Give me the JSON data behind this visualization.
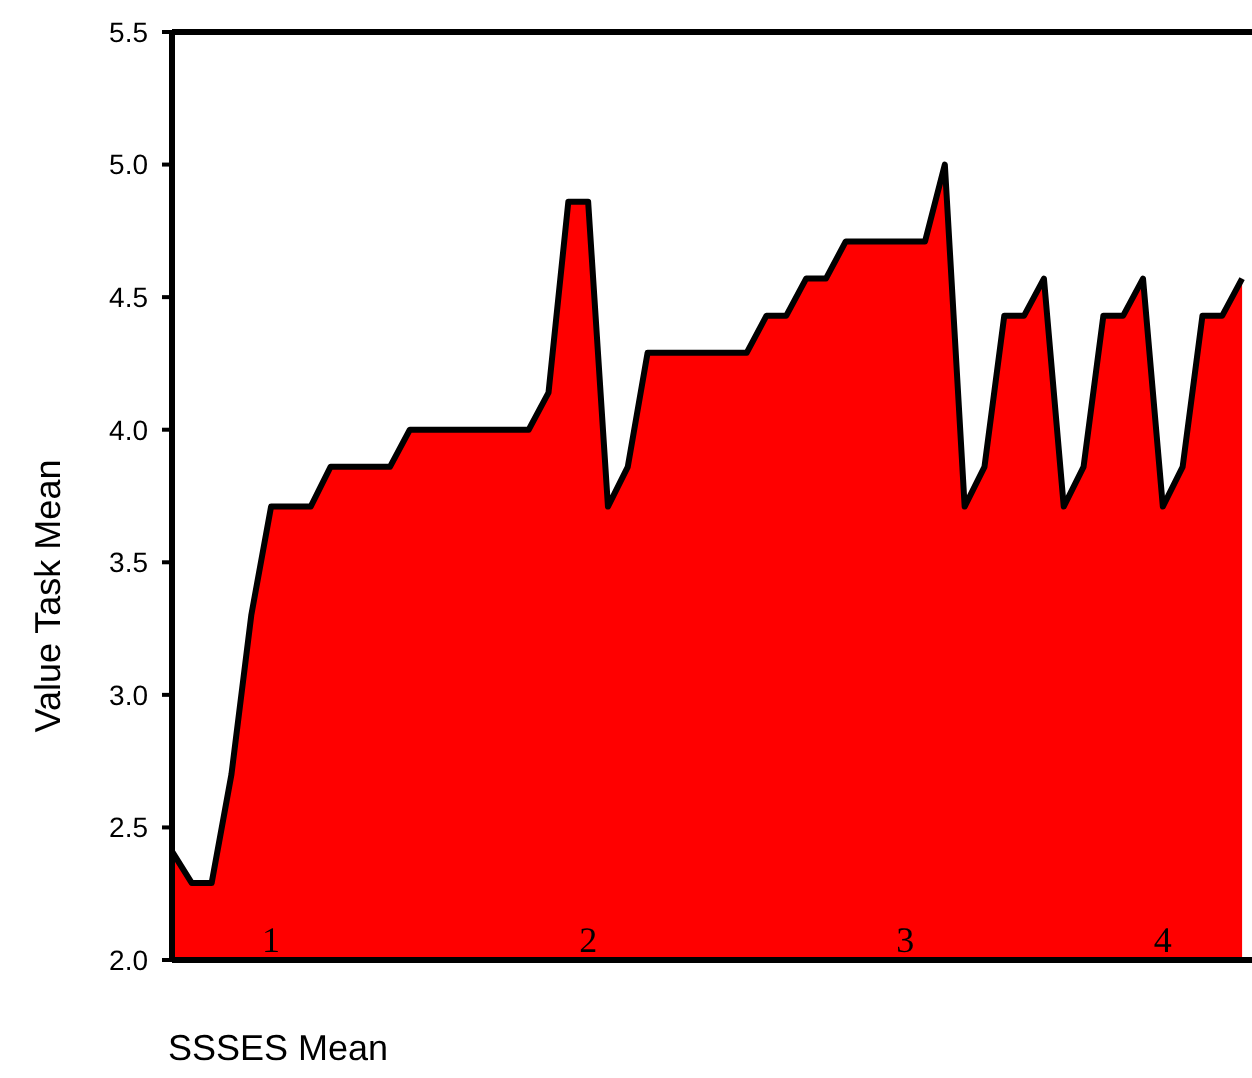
{
  "chart_data": {
    "type": "area",
    "xlabel": "SSSES Mean",
    "ylabel": "Value Task Mean",
    "categories": [
      null,
      null,
      null,
      null,
      null,
      "1",
      null,
      null,
      null,
      null,
      null,
      null,
      null,
      null,
      null,
      null,
      null,
      null,
      null,
      null,
      null,
      "2",
      null,
      null,
      null,
      null,
      null,
      null,
      null,
      null,
      null,
      null,
      null,
      null,
      null,
      null,
      null,
      "3",
      null,
      null,
      null,
      null,
      null,
      null,
      null,
      null,
      null,
      null,
      null,
      null,
      "4",
      null,
      null,
      null,
      null
    ],
    "series": [
      {
        "color": "#ff0000",
        "values": [
          2.41,
          2.29,
          2.29,
          2.7,
          3.3,
          3.71,
          3.71,
          3.71,
          3.86,
          3.86,
          3.86,
          3.86,
          4.0,
          4.0,
          4.0,
          4.0,
          4.0,
          4.0,
          4.0,
          4.14,
          4.86,
          4.86,
          3.71,
          3.86,
          4.29,
          4.29,
          4.29,
          4.29,
          4.29,
          4.29,
          4.43,
          4.43,
          4.57,
          4.57,
          4.71,
          4.71,
          4.71,
          4.71,
          4.71,
          5.0,
          3.71,
          3.86,
          4.43,
          4.43,
          4.57,
          3.71,
          3.86,
          4.43,
          4.43,
          4.57,
          3.71,
          3.86,
          4.43,
          4.43,
          4.57
        ]
      }
    ],
    "ylim": [
      2.0,
      5.5
    ],
    "yticks": [
      {
        "value": 2.0,
        "label": "2.0"
      },
      {
        "value": 2.5,
        "label": "2.5"
      },
      {
        "value": 3.0,
        "label": "3.0"
      },
      {
        "value": 3.5,
        "label": "3.5"
      },
      {
        "value": 4.0,
        "label": "4.0"
      },
      {
        "value": 4.5,
        "label": "4.5"
      },
      {
        "value": 5.0,
        "label": "5.0"
      },
      {
        "value": 5.5,
        "label": "5.5"
      }
    ],
    "grid": false
  }
}
